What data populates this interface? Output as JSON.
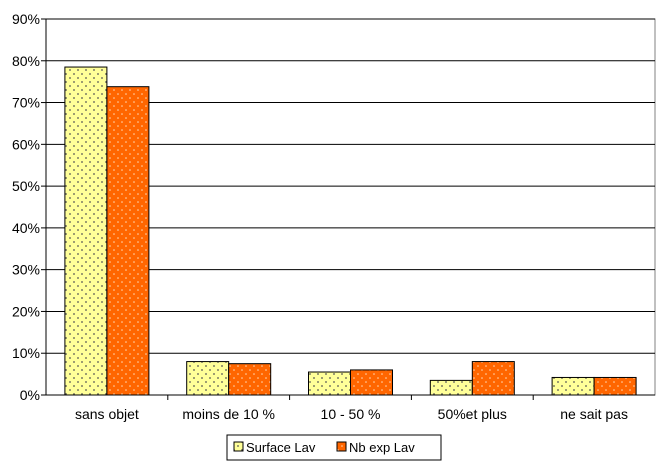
{
  "chart_data": {
    "type": "bar",
    "categories": [
      "sans objet",
      "moins de  10 %",
      "10 - 50 %",
      "50%et plus",
      "ne sait pas"
    ],
    "series": [
      {
        "name": "Surface Lav",
        "values": [
          78.5,
          8.0,
          5.5,
          3.5,
          4.2
        ],
        "color": "#ffff99",
        "pattern": "dotted"
      },
      {
        "name": "Nb exp Lav",
        "values": [
          73.8,
          7.5,
          6.0,
          8.0,
          4.2
        ],
        "color": "#ff6600",
        "pattern": "dotted"
      }
    ],
    "ylim": [
      0,
      90
    ],
    "y_ticks": [
      "0%",
      "10%",
      "20%",
      "30%",
      "40%",
      "50%",
      "60%",
      "70%",
      "80%",
      "90%"
    ],
    "grid": true,
    "legend_position": "bottom"
  }
}
